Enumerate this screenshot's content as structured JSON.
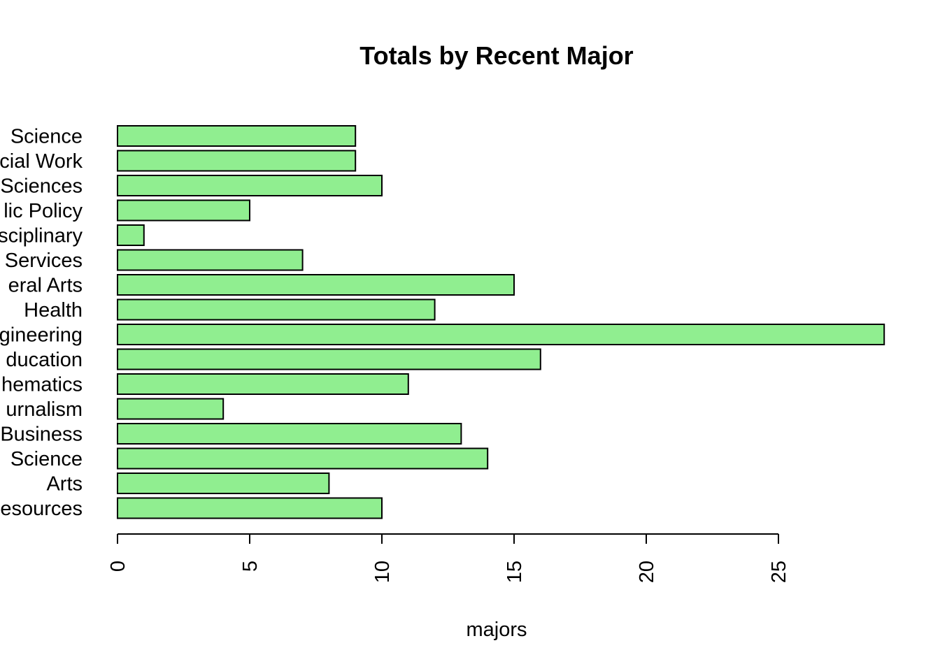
{
  "chart_data": {
    "type": "bar",
    "orientation": "horizontal",
    "title": "Totals by Recent Major",
    "xlabel": "majors",
    "ylabel": "",
    "xlim": [
      0,
      29
    ],
    "x_ticks": [
      0,
      5,
      10,
      15,
      20,
      25
    ],
    "grid": false,
    "bar_color": "#90EE90",
    "bar_border_color": "#000000",
    "categories_top_to_bottom": [
      "Science",
      "cial Work",
      "Sciences",
      "lic Policy",
      "sciplinary",
      "Services",
      "eral Arts",
      "Health",
      "gineering",
      "ducation",
      "hematics",
      "urnalism",
      "Business",
      "Science",
      "Arts",
      "esources"
    ],
    "values_top_to_bottom": [
      9,
      9,
      10,
      5,
      1,
      7,
      15,
      12,
      29,
      16,
      11,
      4,
      13,
      14,
      8,
      10
    ]
  }
}
